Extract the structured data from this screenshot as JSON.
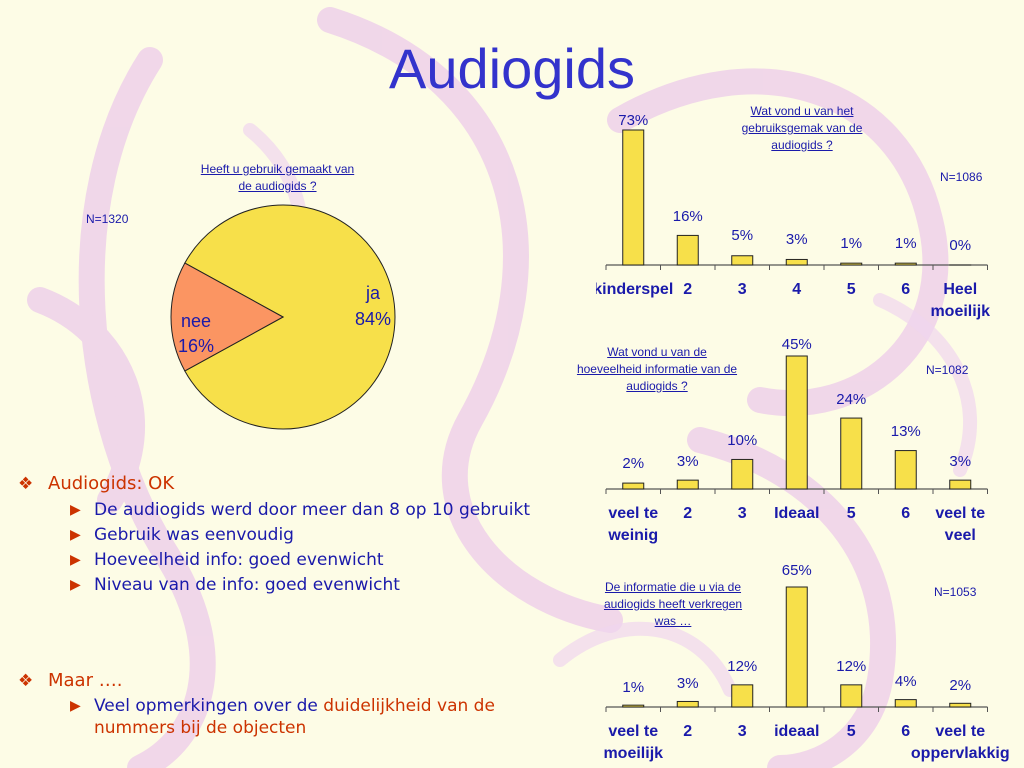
{
  "title": "Audiogids",
  "pie": {
    "question": [
      "Heeft u gebruik gemaakt van",
      "de audiogids ?"
    ],
    "n_label": "N=1320",
    "chart_data": {
      "type": "pie",
      "slices": [
        {
          "label": "ja",
          "value": 84,
          "value_label": "84%",
          "color": "#f7e04a"
        },
        {
          "label": "nee",
          "value": 16,
          "value_label": "16%",
          "color": "#fb9562"
        }
      ]
    }
  },
  "bar1": {
    "question": [
      "Wat vond u van het",
      "gebruiksgemak van de",
      "audiogids ?"
    ],
    "n_label": "N=1086",
    "chart_data": {
      "type": "bar",
      "categories": [
        [
          "kinderspel"
        ],
        [
          "2"
        ],
        [
          "3"
        ],
        [
          "4"
        ],
        [
          "5"
        ],
        [
          "6"
        ],
        [
          "Heel",
          "moeilijk"
        ]
      ],
      "values": [
        73,
        16,
        5,
        3,
        1,
        1,
        0
      ],
      "value_labels": [
        "73%",
        "16%",
        "5%",
        "3%",
        "1%",
        "1%",
        "0%"
      ],
      "bar_color": "#f7e04a"
    }
  },
  "bar2": {
    "question": [
      "Wat vond u van de",
      "hoeveelheid informatie van de",
      "audiogids ?"
    ],
    "n_label": "N=1082",
    "chart_data": {
      "type": "bar",
      "categories": [
        [
          "veel te",
          "weinig"
        ],
        [
          "2"
        ],
        [
          "3"
        ],
        [
          "Ideaal"
        ],
        [
          "5"
        ],
        [
          "6"
        ],
        [
          "veel te",
          "veel"
        ]
      ],
      "values": [
        2,
        3,
        10,
        45,
        24,
        13,
        3
      ],
      "value_labels": [
        "2%",
        "3%",
        "10%",
        "45%",
        "24%",
        "13%",
        "3%"
      ],
      "bar_color": "#f7e04a"
    }
  },
  "bar3": {
    "question": [
      "De  informatie die u via de",
      "audiogids heeft verkregen",
      "was …"
    ],
    "n_label": "N=1053",
    "chart_data": {
      "type": "bar",
      "categories": [
        [
          "veel te",
          "moeilijk"
        ],
        [
          "2"
        ],
        [
          "3"
        ],
        [
          "ideaal"
        ],
        [
          "5"
        ],
        [
          "6"
        ],
        [
          "veel te",
          "oppervlakkig"
        ]
      ],
      "values": [
        1,
        3,
        12,
        65,
        12,
        4,
        2
      ],
      "value_labels": [
        "1%",
        "3%",
        "12%",
        "65%",
        "12%",
        "4%",
        "2%"
      ],
      "bar_color": "#f7e04a"
    }
  },
  "bullets": {
    "b1": {
      "head": "Audiogids: OK",
      "items": [
        "De audiogids werd door meer dan 8 op 10 gebruikt",
        "Gebruik was eenvoudig",
        "Hoeveelheid info: goed evenwicht",
        "Niveau van de info: goed evenwicht"
      ]
    },
    "b2": {
      "head": "Maar ….",
      "item_pre": "Veel opmerkingen over de ",
      "item_hl": "duidelijkheid",
      "item_post": " van de nummers bij de objecten"
    }
  }
}
